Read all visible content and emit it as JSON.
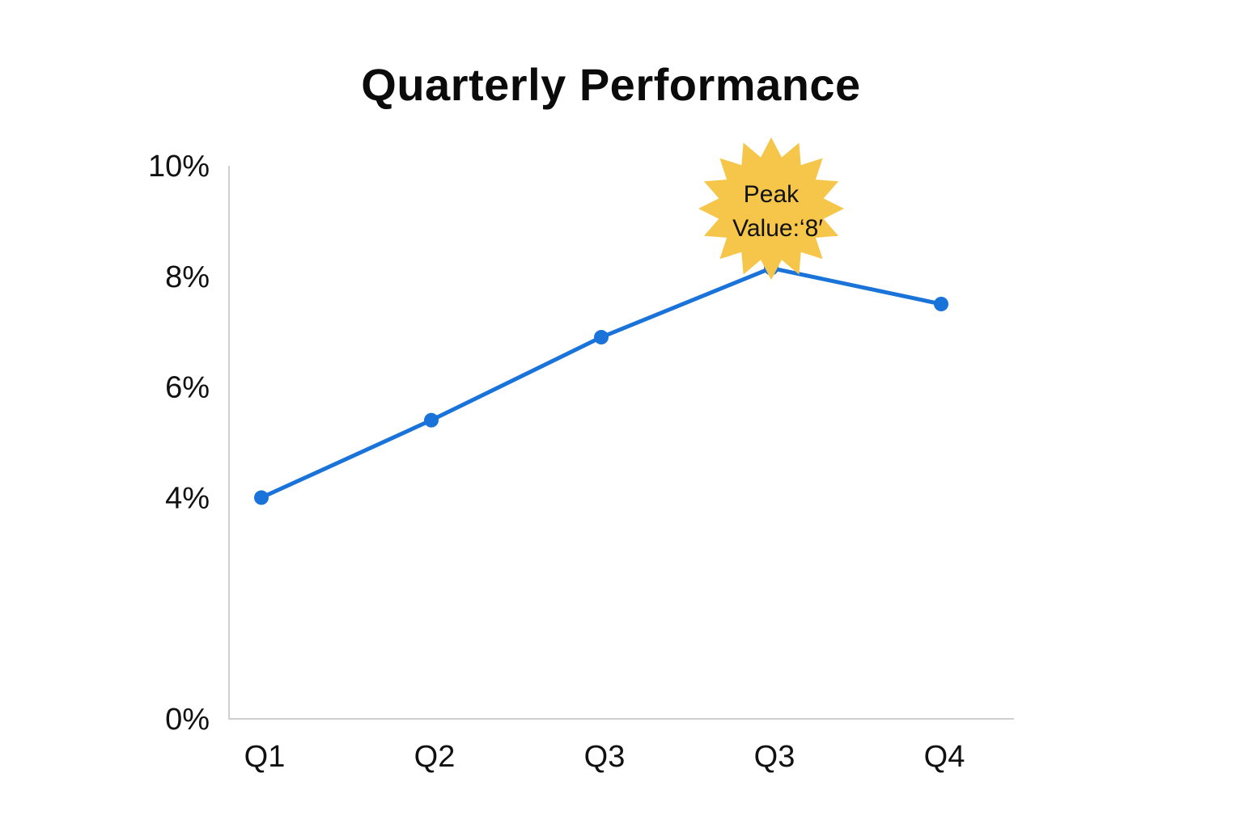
{
  "chart_data": {
    "type": "line",
    "title": "Quarterly Performance",
    "xlabel": "",
    "ylabel": "",
    "categories": [
      "Q1",
      "Q2",
      "Q3",
      "Q3",
      "Q4"
    ],
    "series": [
      {
        "values": [
          4.0,
          5.4,
          6.9,
          8.15,
          7.5
        ]
      }
    ],
    "y_ticks": [
      0,
      4,
      6,
      8,
      10
    ],
    "y_tick_labels": [
      "0%",
      "4%",
      "6%",
      "8%",
      "10%"
    ],
    "ylim": [
      0,
      10
    ],
    "grid": false,
    "annotation": {
      "text_line1": "Peak",
      "text_line2": "Value:‘8′",
      "point_index": 3
    },
    "colors": {
      "line": "#1a73d9",
      "annotation": "#f5c64a",
      "axis": "#cfcfcf",
      "text": "#111111"
    }
  }
}
